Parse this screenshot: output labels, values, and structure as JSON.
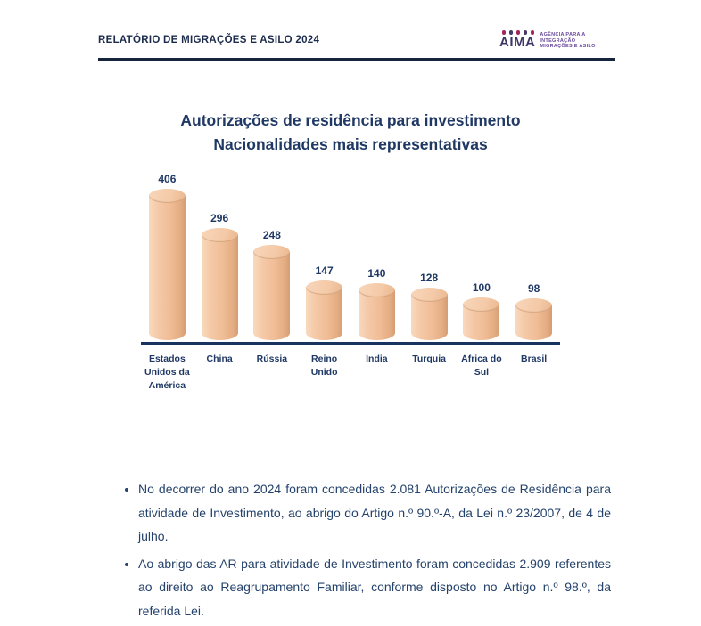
{
  "header": {
    "title": "RELATÓRIO DE MIGRAÇÕES E ASILO 2024",
    "logo": {
      "wordmark": "AIMA",
      "tagline_line1": "AGÊNCIA PARA A",
      "tagline_line2": "INTEGRAÇÃO",
      "tagline_line3": "MIGRAÇÕES E ASILO"
    }
  },
  "chart": {
    "title_line1": "Autorizações de residência para investimento",
    "title_line2": "Nacionalidades mais representativas"
  },
  "chart_data": {
    "type": "bar",
    "style": "3d-cylinder",
    "title": "Autorizações de residência para investimento — Nacionalidades mais representativas",
    "categories": [
      "Estados Unidos da América",
      "China",
      "Rússia",
      "Reino Unido",
      "Índia",
      "Turquia",
      "África do Sul",
      "Brasil"
    ],
    "values": [
      406,
      296,
      248,
      147,
      140,
      128,
      100,
      98
    ],
    "xlabel": "",
    "ylabel": "",
    "ylim": [
      0,
      430
    ],
    "grid": false,
    "legend": "none",
    "bar_color": "#F2C4A0",
    "data_labels": true
  },
  "notes": {
    "bullets": [
      "No decorrer do ano 2024 foram concedidas 2.081 Autorizações de Residência para atividade de Investimento, ao abrigo do Artigo n.º 90.º-A, da Lei n.º 23/2007, de 4 de julho.",
      "Ao abrigo das AR para atividade de Investimento foram concedidas 2.909 referentes ao direito ao Reagrupamento Familiar, conforme disposto no Artigo n.º 98.º, da referida Lei."
    ]
  },
  "colors": {
    "navy_text": "#1F3864",
    "header_navy": "#1B2B4D",
    "rule_navy": "#16243E",
    "axis_navy": "#17335E",
    "bar_base": "#F2C4A0",
    "bar_highlight": "#F9D9BD",
    "bar_shadow": "#D59D74",
    "logo_purple": "#3D3766",
    "logo_magenta": "#A6245E",
    "tagline_purple": "#6A4B9E"
  }
}
